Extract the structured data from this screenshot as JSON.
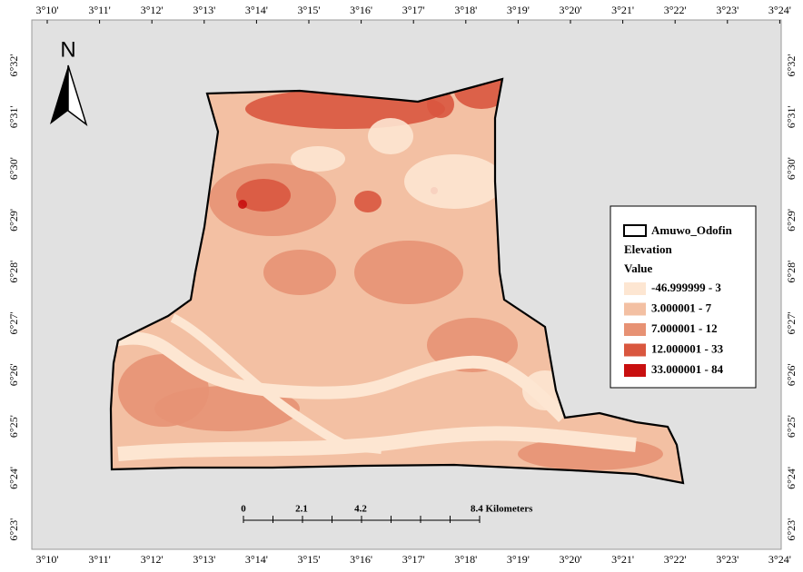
{
  "north_arrow": {
    "label": "N"
  },
  "graticule": {
    "longitude_labels": [
      "3°10'",
      "3°11'",
      "3°12'",
      "3°13'",
      "3°14'",
      "3°15'",
      "3°16'",
      "3°17'",
      "3°18'",
      "3°19'",
      "3°20'",
      "3°21'",
      "3°22'",
      "3°23'",
      "3°24'"
    ],
    "latitude_labels": [
      "6°32'",
      "6°31'",
      "6°30'",
      "6°29'",
      "6°28'",
      "6°27'",
      "6°26'",
      "6°25'",
      "6°24'",
      "6°23'"
    ]
  },
  "legend": {
    "boundary_label": "Amuwo_Odofin",
    "title": "Elevation",
    "subtitle": "Value",
    "classes": [
      {
        "label": "-46.999999 - 3",
        "color": "#fde6d2"
      },
      {
        "label": "3.000001 - 7",
        "color": "#f3c0a3"
      },
      {
        "label": "7.000001 - 12",
        "color": "#e79274"
      },
      {
        "label": "12.000001 - 33",
        "color": "#d9573f"
      },
      {
        "label": "33.000001 - 84",
        "color": "#c80f0f"
      }
    ]
  },
  "scale_bar": {
    "labels": [
      "0",
      "2.1",
      "4.2",
      "8.4 Kilometers"
    ]
  }
}
